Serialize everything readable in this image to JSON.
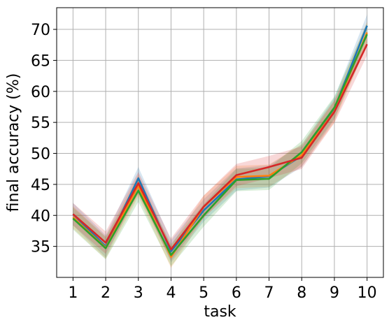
{
  "chart_data": {
    "type": "line",
    "title": "",
    "xlabel": "task",
    "ylabel": "final accuracy (%)",
    "x": [
      1,
      2,
      3,
      4,
      5,
      6,
      7,
      8,
      9,
      10
    ],
    "xticks": [
      "1",
      "2",
      "3",
      "4",
      "5",
      "6",
      "7",
      "8",
      "9",
      "10"
    ],
    "yticks": [
      "35",
      "40",
      "45",
      "50",
      "55",
      "60",
      "65",
      "70"
    ],
    "xlim": [
      0.5,
      10.5
    ],
    "ylim": [
      30.0,
      73.5
    ],
    "grid": true,
    "legend": "none",
    "series": [
      {
        "color": "#1f77b4",
        "values": [
          40.2,
          35.0,
          46.0,
          34.2,
          40.8,
          45.8,
          46.3,
          49.6,
          57.2,
          70.6
        ],
        "band": 1.8
      },
      {
        "color": "#ff7f0e",
        "values": [
          39.7,
          34.8,
          44.8,
          33.3,
          41.4,
          46.2,
          46.4,
          49.7,
          56.8,
          69.5
        ],
        "band": 1.8
      },
      {
        "color": "#2ca02c",
        "values": [
          39.5,
          34.7,
          44.0,
          33.6,
          40.0,
          45.7,
          45.9,
          50.2,
          57.4,
          69.2
        ],
        "band": 1.8
      },
      {
        "color": "#d62728",
        "values": [
          40.2,
          35.6,
          45.2,
          34.5,
          41.4,
          46.5,
          47.8,
          49.3,
          56.7,
          67.6
        ],
        "band": 1.8
      }
    ]
  }
}
